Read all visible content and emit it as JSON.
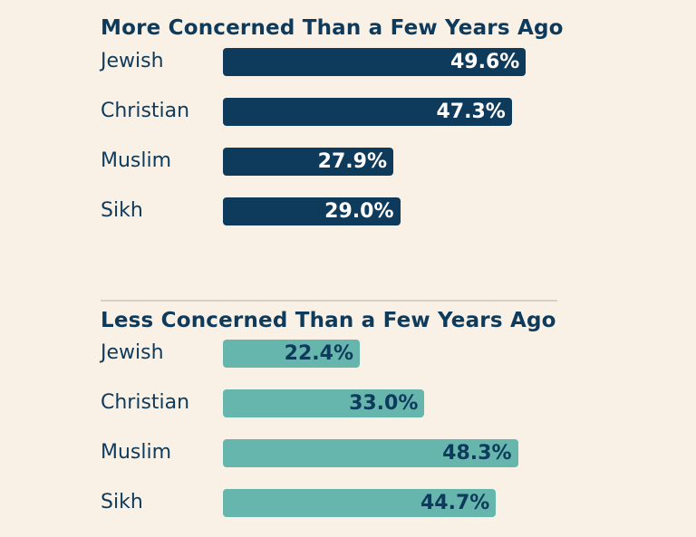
{
  "colors": {
    "background": "#faf1e6",
    "text": "#0e3a5c",
    "more_bar": "#0e3a5c",
    "less_bar": "#66b6ad",
    "divider": "#d8cfc5"
  },
  "chart_data": [
    {
      "type": "bar",
      "orientation": "horizontal",
      "title": "More Concerned Than a Few Years Ago",
      "categories": [
        "Jewish",
        "Christian",
        "Muslim",
        "Sikh"
      ],
      "values": [
        49.6,
        47.3,
        27.9,
        29.0
      ],
      "value_labels": [
        "49.6%",
        "47.3%",
        "27.9%",
        "29.0%"
      ],
      "unit": "%",
      "xlim": [
        0,
        100
      ],
      "grid": false,
      "legend": "none"
    },
    {
      "type": "bar",
      "orientation": "horizontal",
      "title": "Less Concerned Than a Few Years Ago",
      "categories": [
        "Jewish",
        "Christian",
        "Muslim",
        "Sikh"
      ],
      "values": [
        22.4,
        33.0,
        48.3,
        44.7
      ],
      "value_labels": [
        "22.4%",
        "33.0%",
        "48.3%",
        "44.7%"
      ],
      "unit": "%",
      "xlim": [
        0,
        100
      ],
      "grid": false,
      "legend": "none"
    }
  ]
}
